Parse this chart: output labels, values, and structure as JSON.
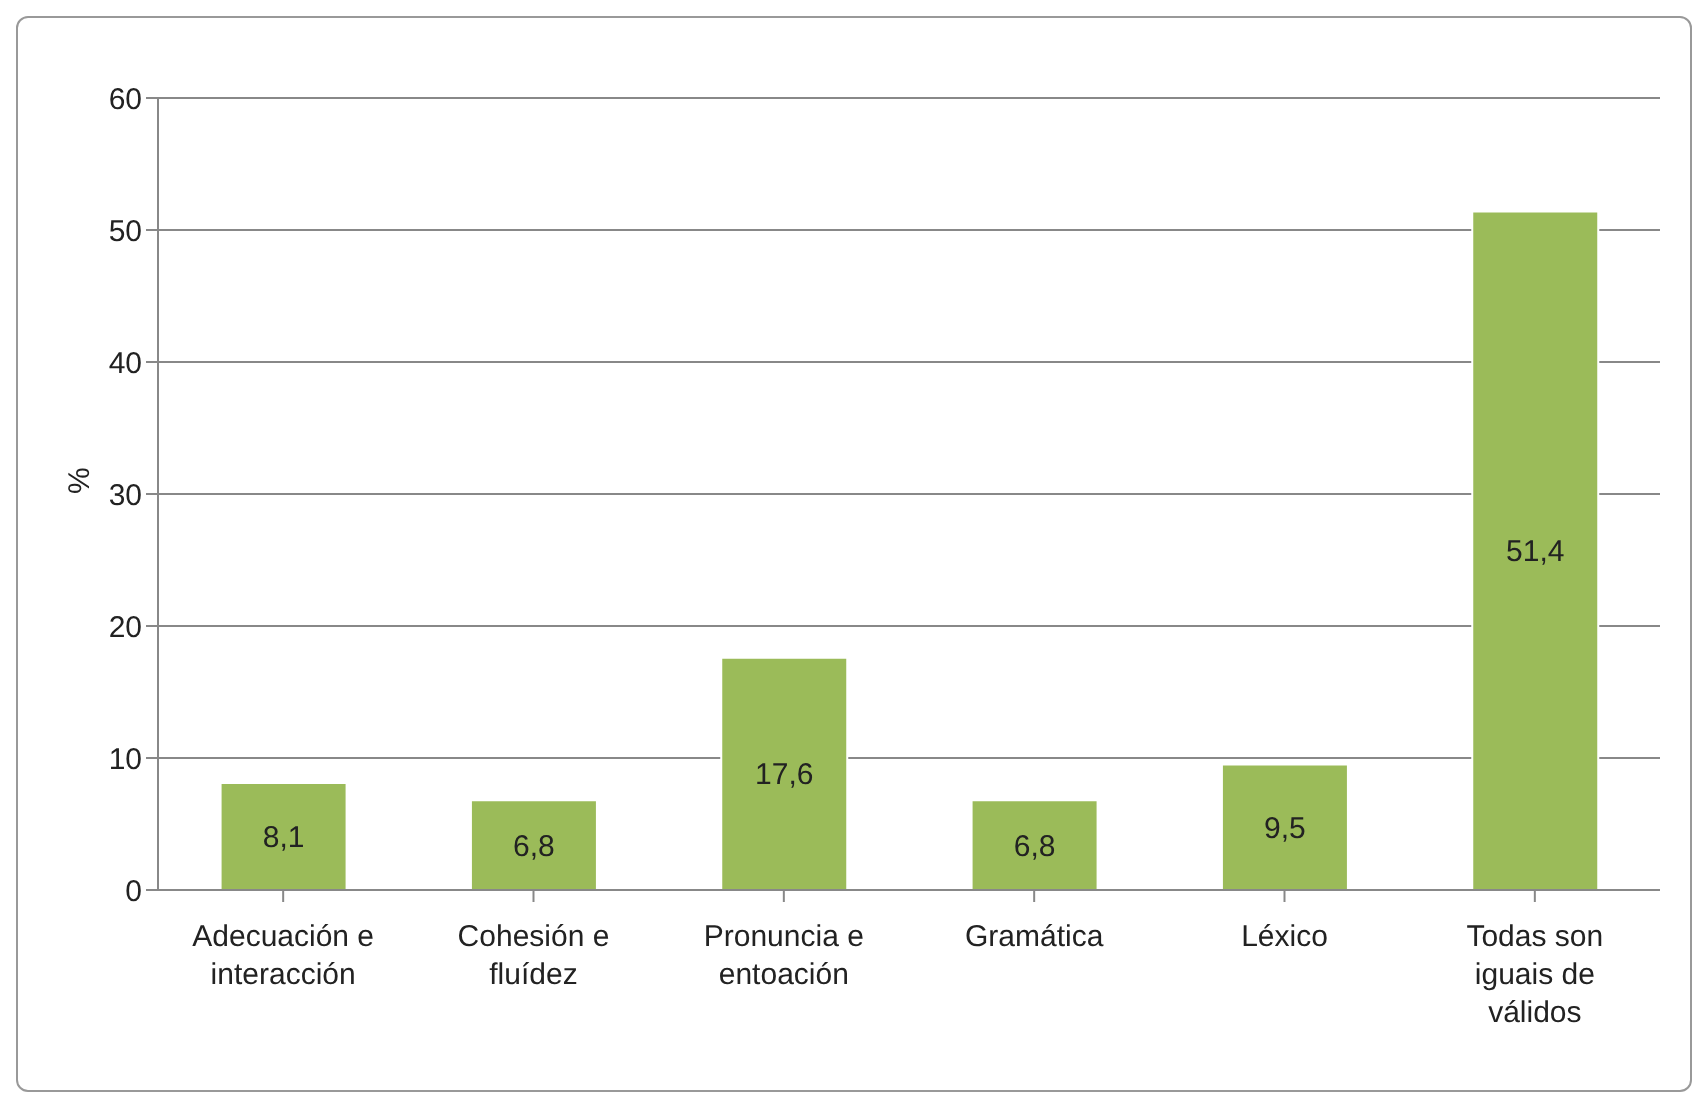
{
  "chart_data": {
    "type": "bar",
    "ylabel": "%",
    "categories": [
      "Adecuación e interacción",
      "Cohesión e fluídez",
      "Pronuncia e entoación",
      "Gramática",
      "Léxico",
      "Todas son iguais de válidos"
    ],
    "values": [
      8.1,
      6.8,
      17.6,
      6.8,
      9.5,
      51.4
    ],
    "value_labels": [
      "8,1",
      "6,8",
      "17,6",
      "6,8",
      "9,5",
      "51,4"
    ],
    "color": "#9bbb59",
    "ylim": [
      0,
      60
    ],
    "yticks": [
      0,
      10,
      20,
      30,
      40,
      50,
      60
    ],
    "grid": "y"
  }
}
